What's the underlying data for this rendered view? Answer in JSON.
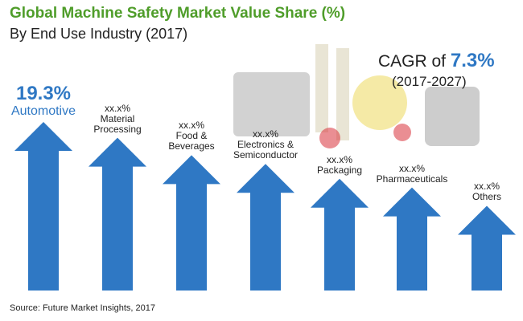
{
  "header": {
    "title": "Global Machine Safety Market Value Share (%)",
    "subtitle": "By End Use Industry (2017)"
  },
  "cagr": {
    "prefix": "CAGR of",
    "value": "7.3%",
    "period": "(2017-2027)"
  },
  "footer": {
    "source": "Source: Future Market Insights, 2017"
  },
  "colors": {
    "title": "#4f9d2a",
    "arrow": "#2f78c4",
    "text": "#222222"
  },
  "chart_data": {
    "type": "bar",
    "categories": [
      "Automotive",
      "Material Processing",
      "Food & Beverages",
      "Electronics & Semiconductor",
      "Packaging",
      "Pharmaceuticals",
      "Others"
    ],
    "category_lines": [
      [
        "Automotive"
      ],
      [
        "Material",
        "Processing"
      ],
      [
        "Food &",
        "Beverages"
      ],
      [
        "Electronics &",
        "Semiconductor"
      ],
      [
        "Packaging"
      ],
      [
        "Pharmaceuticals"
      ],
      [
        "Others"
      ]
    ],
    "value_labels": [
      "19.3%",
      "xx.x%",
      "xx.x%",
      "xx.x%",
      "xx.x%",
      "xx.x%",
      "xx.x%"
    ],
    "values": [
      19.3,
      17.5,
      15.5,
      14.5,
      12.8,
      11.8,
      9.7
    ],
    "mark": "arrow",
    "title": "Global Machine Safety Market Value Share (%)",
    "subtitle": "By End Use Industry (2017)",
    "xlabel": "",
    "ylabel": "",
    "legend": "none",
    "grid": false
  }
}
